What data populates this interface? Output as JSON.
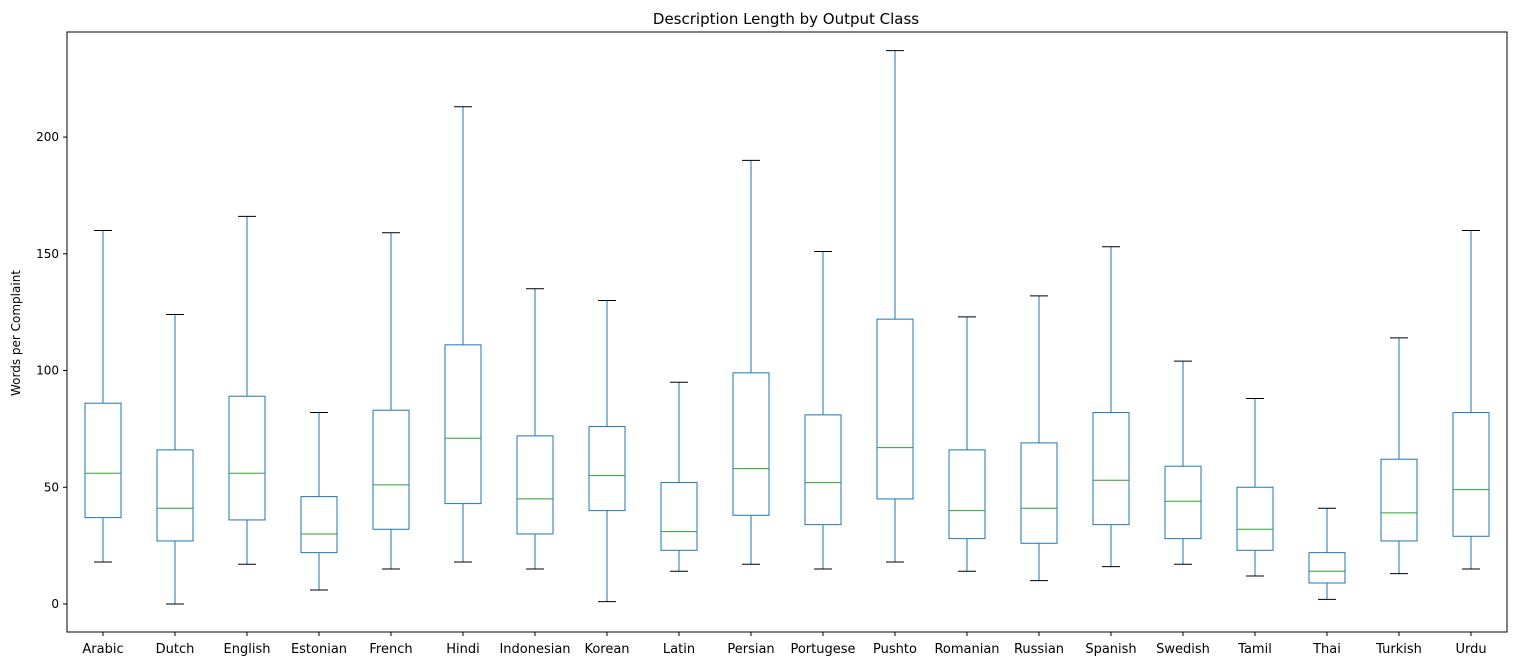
{
  "chart_data": {
    "type": "box",
    "title": "Description Length by Output Class",
    "xlabel": "",
    "ylabel": "Words per Complaint",
    "ylim": [
      -12,
      245
    ],
    "yticks": [
      0,
      50,
      100,
      150,
      200
    ],
    "grid": false,
    "colors": {
      "box": "#1f77b4",
      "median": "#2ca02c",
      "cap": "#000000",
      "axis": "#000000"
    },
    "categories": [
      "Arabic",
      "Dutch",
      "English",
      "Estonian",
      "French",
      "Hindi",
      "Indonesian",
      "Korean",
      "Latin",
      "Persian",
      "Portugese",
      "Pushto",
      "Romanian",
      "Russian",
      "Spanish",
      "Swedish",
      "Tamil",
      "Thai",
      "Turkish",
      "Urdu"
    ],
    "boxes": [
      {
        "label": "Arabic",
        "whisker_low": 18,
        "q1": 37,
        "median": 56,
        "q3": 86,
        "whisker_high": 160
      },
      {
        "label": "Dutch",
        "whisker_low": 0,
        "q1": 27,
        "median": 41,
        "q3": 66,
        "whisker_high": 124
      },
      {
        "label": "English",
        "whisker_low": 17,
        "q1": 36,
        "median": 56,
        "q3": 89,
        "whisker_high": 166
      },
      {
        "label": "Estonian",
        "whisker_low": 6,
        "q1": 22,
        "median": 30,
        "q3": 46,
        "whisker_high": 82
      },
      {
        "label": "French",
        "whisker_low": 15,
        "q1": 32,
        "median": 51,
        "q3": 83,
        "whisker_high": 159
      },
      {
        "label": "Hindi",
        "whisker_low": 18,
        "q1": 43,
        "median": 71,
        "q3": 111,
        "whisker_high": 213
      },
      {
        "label": "Indonesian",
        "whisker_low": 15,
        "q1": 30,
        "median": 45,
        "q3": 72,
        "whisker_high": 135
      },
      {
        "label": "Korean",
        "whisker_low": 1,
        "q1": 40,
        "median": 55,
        "q3": 76,
        "whisker_high": 130
      },
      {
        "label": "Latin",
        "whisker_low": 14,
        "q1": 23,
        "median": 31,
        "q3": 52,
        "whisker_high": 95
      },
      {
        "label": "Persian",
        "whisker_low": 17,
        "q1": 38,
        "median": 58,
        "q3": 99,
        "whisker_high": 190
      },
      {
        "label": "Portugese",
        "whisker_low": 15,
        "q1": 34,
        "median": 52,
        "q3": 81,
        "whisker_high": 151
      },
      {
        "label": "Pushto",
        "whisker_low": 18,
        "q1": 45,
        "median": 67,
        "q3": 122,
        "whisker_high": 237
      },
      {
        "label": "Romanian",
        "whisker_low": 14,
        "q1": 28,
        "median": 40,
        "q3": 66,
        "whisker_high": 123
      },
      {
        "label": "Russian",
        "whisker_low": 10,
        "q1": 26,
        "median": 41,
        "q3": 69,
        "whisker_high": 132
      },
      {
        "label": "Spanish",
        "whisker_low": 16,
        "q1": 34,
        "median": 53,
        "q3": 82,
        "whisker_high": 153
      },
      {
        "label": "Swedish",
        "whisker_low": 17,
        "q1": 28,
        "median": 44,
        "q3": 59,
        "whisker_high": 104
      },
      {
        "label": "Tamil",
        "whisker_low": 12,
        "q1": 23,
        "median": 32,
        "q3": 50,
        "whisker_high": 88
      },
      {
        "label": "Thai",
        "whisker_low": 2,
        "q1": 9,
        "median": 14,
        "q3": 22,
        "whisker_high": 41
      },
      {
        "label": "Turkish",
        "whisker_low": 13,
        "q1": 27,
        "median": 39,
        "q3": 62,
        "whisker_high": 114
      },
      {
        "label": "Urdu",
        "whisker_low": 15,
        "q1": 29,
        "median": 49,
        "q3": 82,
        "whisker_high": 160
      }
    ]
  }
}
